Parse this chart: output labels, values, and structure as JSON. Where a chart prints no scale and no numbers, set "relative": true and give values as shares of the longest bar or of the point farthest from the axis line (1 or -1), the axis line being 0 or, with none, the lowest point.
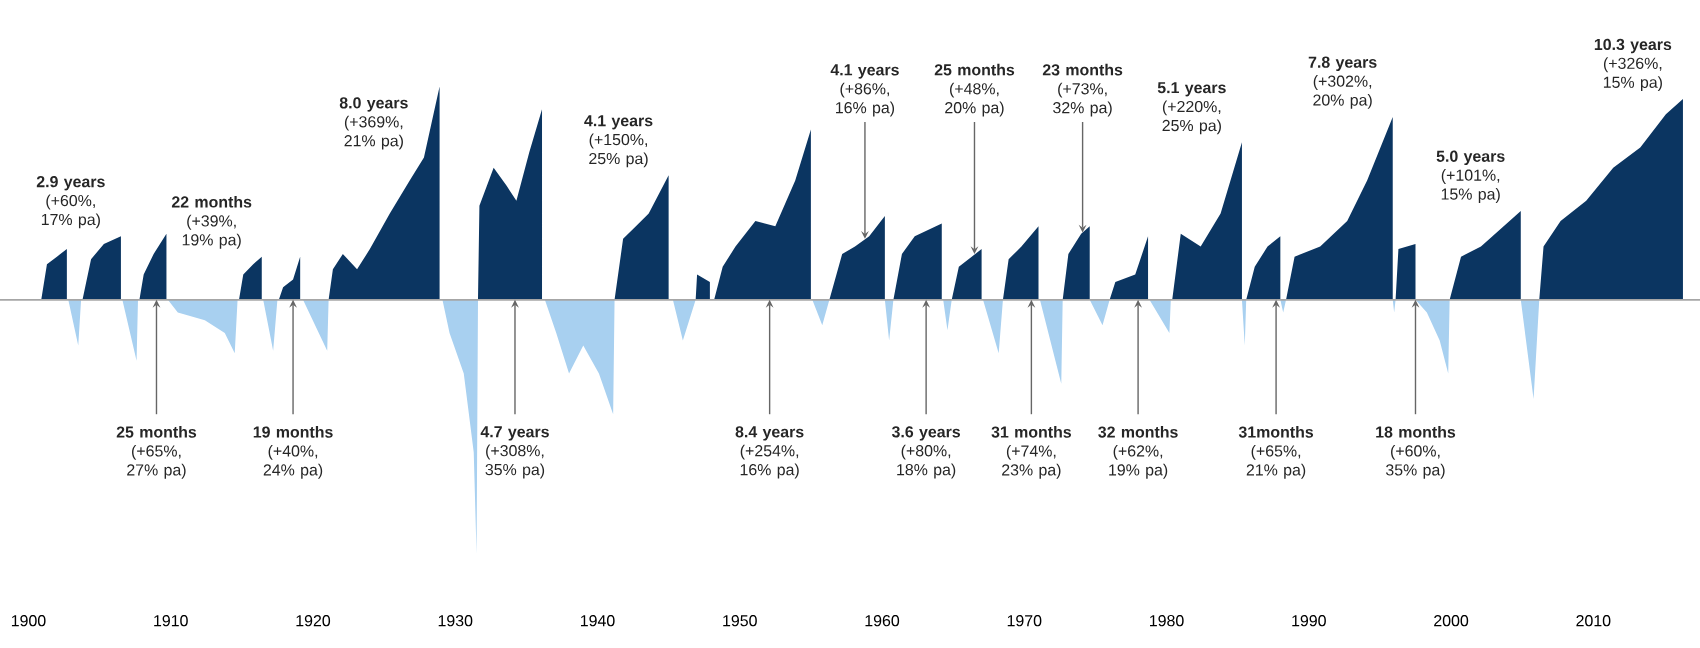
{
  "chart_data": {
    "type": "area",
    "relative": true,
    "xlim": [
      1898,
      2017.5
    ],
    "xticks": [
      1900,
      1910,
      1920,
      1930,
      1940,
      1950,
      1960,
      1970,
      1980,
      1990,
      2000,
      2010
    ],
    "grid": false,
    "series": [
      {
        "color": "#0b3561",
        "x": [
          1900.9,
          1901.3,
          1902.0,
          1902.7,
          1902.7,
          1903.8,
          1904.4,
          1905.3,
          1906.5,
          1906.5,
          1907.8,
          1908.1,
          1908.8,
          1909.7,
          1909.7,
          1914.8,
          1915.1,
          1915.8,
          1916.4,
          1916.4,
          1917.6,
          1917.9,
          1918.6,
          1919.1,
          1919.1,
          1921.1,
          1921.4,
          1922.1,
          1923.1,
          1924.0,
          1925.4,
          1926.8,
          1927.8,
          1928.9,
          1928.9,
          1931.6,
          1931.7,
          1932.7,
          1933.6,
          1934.3,
          1935.2,
          1936.1,
          1936.1,
          1941.2,
          1941.8,
          1942.7,
          1943.6,
          1945.0,
          1945.0,
          1946.9,
          1947.0,
          1947.9,
          1947.9,
          1948.2,
          1948.8,
          1949.7,
          1951.1,
          1952.5,
          1953.9,
          1955.0,
          1955.0,
          1956.3,
          1957.2,
          1958.1,
          1959.1,
          1960.2,
          1960.2,
          1960.8,
          1961.4,
          1962.3,
          1964.2,
          1964.2,
          1964.9,
          1965.4,
          1967.0,
          1967.0,
          1968.5,
          1968.9,
          1969.8,
          1971.0,
          1971.0,
          1972.7,
          1973.1,
          1974.0,
          1974.6,
          1974.6,
          1976.0,
          1976.4,
          1977.8,
          1978.7,
          1978.7,
          1980.4,
          1981.0,
          1982.4,
          1983.8,
          1985.3,
          1985.3,
          1985.6,
          1986.2,
          1987.1,
          1988.0,
          1988.0,
          1988.4,
          1989.0,
          1990.8,
          1992.7,
          1994.1,
          1995.9,
          1995.9,
          1996.1,
          1996.3,
          1997.5,
          1997.5,
          1999.9,
          2000.7,
          2002.1,
          2003.5,
          2004.9,
          2004.9,
          2006.2,
          2006.5,
          2007.7,
          2009.5,
          2011.4,
          2013.3,
          2015.1,
          2016.3,
          2016.3
        ],
        "values": [
          0,
          0.14,
          0.17,
          0.2,
          0,
          0,
          0.16,
          0.22,
          0.25,
          0,
          0,
          0.1,
          0.18,
          0.26,
          0,
          0,
          0.1,
          0.14,
          0.17,
          0,
          0,
          0.05,
          0.08,
          0.17,
          0,
          0,
          0.12,
          0.18,
          0.12,
          0.2,
          0.34,
          0.47,
          0.56,
          0.84,
          0,
          0,
          0.37,
          0.52,
          0.45,
          0.39,
          0.58,
          0.75,
          0,
          0,
          0.24,
          0.29,
          0.34,
          0.49,
          0,
          0,
          0.1,
          0.07,
          0,
          0,
          0.13,
          0.21,
          0.31,
          0.29,
          0.47,
          0.67,
          0,
          0,
          0.18,
          0.21,
          0.25,
          0.33,
          0,
          0,
          0.18,
          0.25,
          0.3,
          0,
          0,
          0.13,
          0.2,
          0,
          0,
          0.16,
          0.21,
          0.29,
          0,
          0,
          0.18,
          0.26,
          0.29,
          0,
          0,
          0.07,
          0.1,
          0.25,
          0,
          0,
          0.26,
          0.21,
          0.34,
          0.62,
          0,
          0,
          0.13,
          0.21,
          0.25,
          0,
          0,
          0.17,
          0.21,
          0.31,
          0.47,
          0.72,
          0,
          0,
          0.2,
          0.22,
          0,
          0,
          0.17,
          0.21,
          0.28,
          0.35,
          0,
          0,
          0.21,
          0.31,
          0.39,
          0.52,
          0.6,
          0.73,
          0.79,
          0
        ]
      },
      {
        "color": "#a8d0f0",
        "x": [
          1902.8,
          1903.5,
          1903.7,
          1906.6,
          1907.6,
          1907.7,
          1909.8,
          1910.5,
          1912.4,
          1913.8,
          1914.5,
          1914.7,
          1916.5,
          1917.2,
          1917.5,
          1919.3,
          1921.0,
          1921.1,
          1929.1,
          1929.6,
          1930.6,
          1931.3,
          1931.5,
          1931.6,
          1936.3,
          1937.1,
          1938.0,
          1939.0,
          1940.1,
          1941.1,
          1941.2,
          1945.3,
          1946.0,
          1946.9,
          1955.1,
          1955.8,
          1956.3,
          1960.2,
          1960.5,
          1960.8,
          1964.3,
          1964.6,
          1964.9,
          1967.1,
          1968.2,
          1968.5,
          1971.1,
          1972.6,
          1972.7,
          1974.6,
          1975.5,
          1976.0,
          1978.8,
          1980.2,
          1980.3,
          1985.3,
          1985.5,
          1985.6,
          1988.0,
          1988.2,
          1988.4,
          1995.9,
          1996.0,
          1996.1,
          1997.5,
          1998.3,
          1999.2,
          1999.8,
          1999.9,
          2004.9,
          2005.8,
          2006.2
        ],
        "values": [
          0,
          -0.18,
          0,
          0,
          -0.24,
          0,
          0,
          -0.05,
          -0.08,
          -0.13,
          -0.21,
          0,
          0,
          -0.2,
          0,
          0,
          -0.2,
          0,
          0,
          -0.13,
          -0.29,
          -0.6,
          -1,
          0,
          0,
          -0.13,
          -0.29,
          -0.18,
          -0.29,
          -0.45,
          0,
          0,
          -0.16,
          0,
          0,
          -0.1,
          0,
          0,
          -0.16,
          0,
          0,
          -0.12,
          0,
          0,
          -0.21,
          0,
          0,
          -0.33,
          0,
          0,
          -0.1,
          0,
          0,
          -0.13,
          0,
          0,
          -0.18,
          0,
          0,
          -0.05,
          0,
          0,
          -0.05,
          0,
          0,
          -0.05,
          -0.16,
          -0.29,
          0,
          0,
          -0.39,
          0
        ]
      }
    ],
    "annotations": [
      {
        "text": "**2.9 years** (+60%, 17% pa)",
        "x": 1906.5,
        "y": 0.25
      },
      {
        "text": "**22 months** (+39%, 19% pa)",
        "x": 1916.4,
        "y": 0.17
      },
      {
        "text": "**8.0 years** (+369%, 21% pa)",
        "x": 1927.8,
        "y": 0.56
      },
      {
        "text": "**4.1  years** (+150%, 25% pa)",
        "x": 1945.0,
        "y": 0.49
      },
      {
        "text": "**4.1 years** (+86%, 16% pa)",
        "x": 1958.8,
        "y": 0.24
      },
      {
        "text": "**25 months** (+48%, 20% pa)",
        "x": 1966.5,
        "y": 0.18
      },
      {
        "text": "**23 months** (+73%, 32% pa)",
        "x": 1974.1,
        "y": 0.265
      },
      {
        "text": "**5.1 years** (+220%, 25% pa)",
        "x": 1985.3,
        "y": 0.62
      },
      {
        "text": "**7.8 years** (+302%, 20% pa)",
        "x": 1995.9,
        "y": 0.72
      },
      {
        "text": "**5.0 years** (+101%, 15% pa)",
        "x": 2004.9,
        "y": 0.35
      },
      {
        "text": "**10.3 years** (+326%, 15% pa)",
        "x": 2016.3,
        "y": 0.79
      },
      {
        "text": "**25 months** (+65%, 27% pa)",
        "x": 1909.0,
        "y": 0
      },
      {
        "text": "**19 months** (+40%, 24% pa)",
        "x": 1918.6,
        "y": 0
      },
      {
        "text": "**4.7 years** (+308%, 35% pa)",
        "x": 1934.2,
        "y": 0
      },
      {
        "text": "**8.4 years** (+254%, 16% pa)",
        "x": 1952.1,
        "y": 0
      },
      {
        "text": "**3.6 years** (+80%, 18% pa)",
        "x": 1963.1,
        "y": 0
      },
      {
        "text": "**31 months** (+74%, 23% pa)",
        "x": 1970.5,
        "y": 0
      },
      {
        "text": "**32 months** (+62%, 19% pa)",
        "x": 1978.0,
        "y": 0
      },
      {
        "text": "**31months** (+65%, 21% pa)",
        "x": 1987.7,
        "y": 0
      },
      {
        "text": "**18 months** (+60%, 35% pa)",
        "x": 1997.5,
        "y": 0
      }
    ]
  }
}
